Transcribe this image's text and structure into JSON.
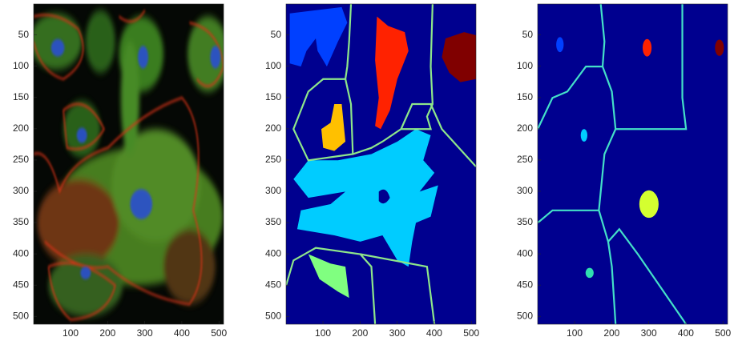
{
  "chart_data": [
    {
      "type": "image",
      "xlim": [
        0.5,
        512.5
      ],
      "ylim": [
        0.5,
        512.5
      ],
      "y_reversed": true,
      "xticks": [
        100,
        200,
        300,
        400,
        500
      ],
      "yticks": [
        50,
        100,
        150,
        200,
        250,
        300,
        350,
        400,
        450,
        500
      ]
    },
    {
      "type": "image",
      "xlim": [
        0.5,
        512.5
      ],
      "ylim": [
        0.5,
        512.5
      ],
      "y_reversed": true,
      "xticks": [
        100,
        200,
        300,
        400,
        500
      ],
      "yticks": [
        50,
        100,
        150,
        200,
        250,
        300,
        350,
        400,
        450,
        500
      ]
    },
    {
      "type": "image",
      "xlim": [
        0.5,
        512.5
      ],
      "ylim": [
        0.5,
        512.5
      ],
      "y_reversed": true,
      "xticks": [
        100,
        200,
        300,
        400,
        500
      ],
      "yticks": [
        50,
        100,
        150,
        200,
        250,
        300,
        350,
        400,
        450,
        500
      ]
    }
  ]
}
